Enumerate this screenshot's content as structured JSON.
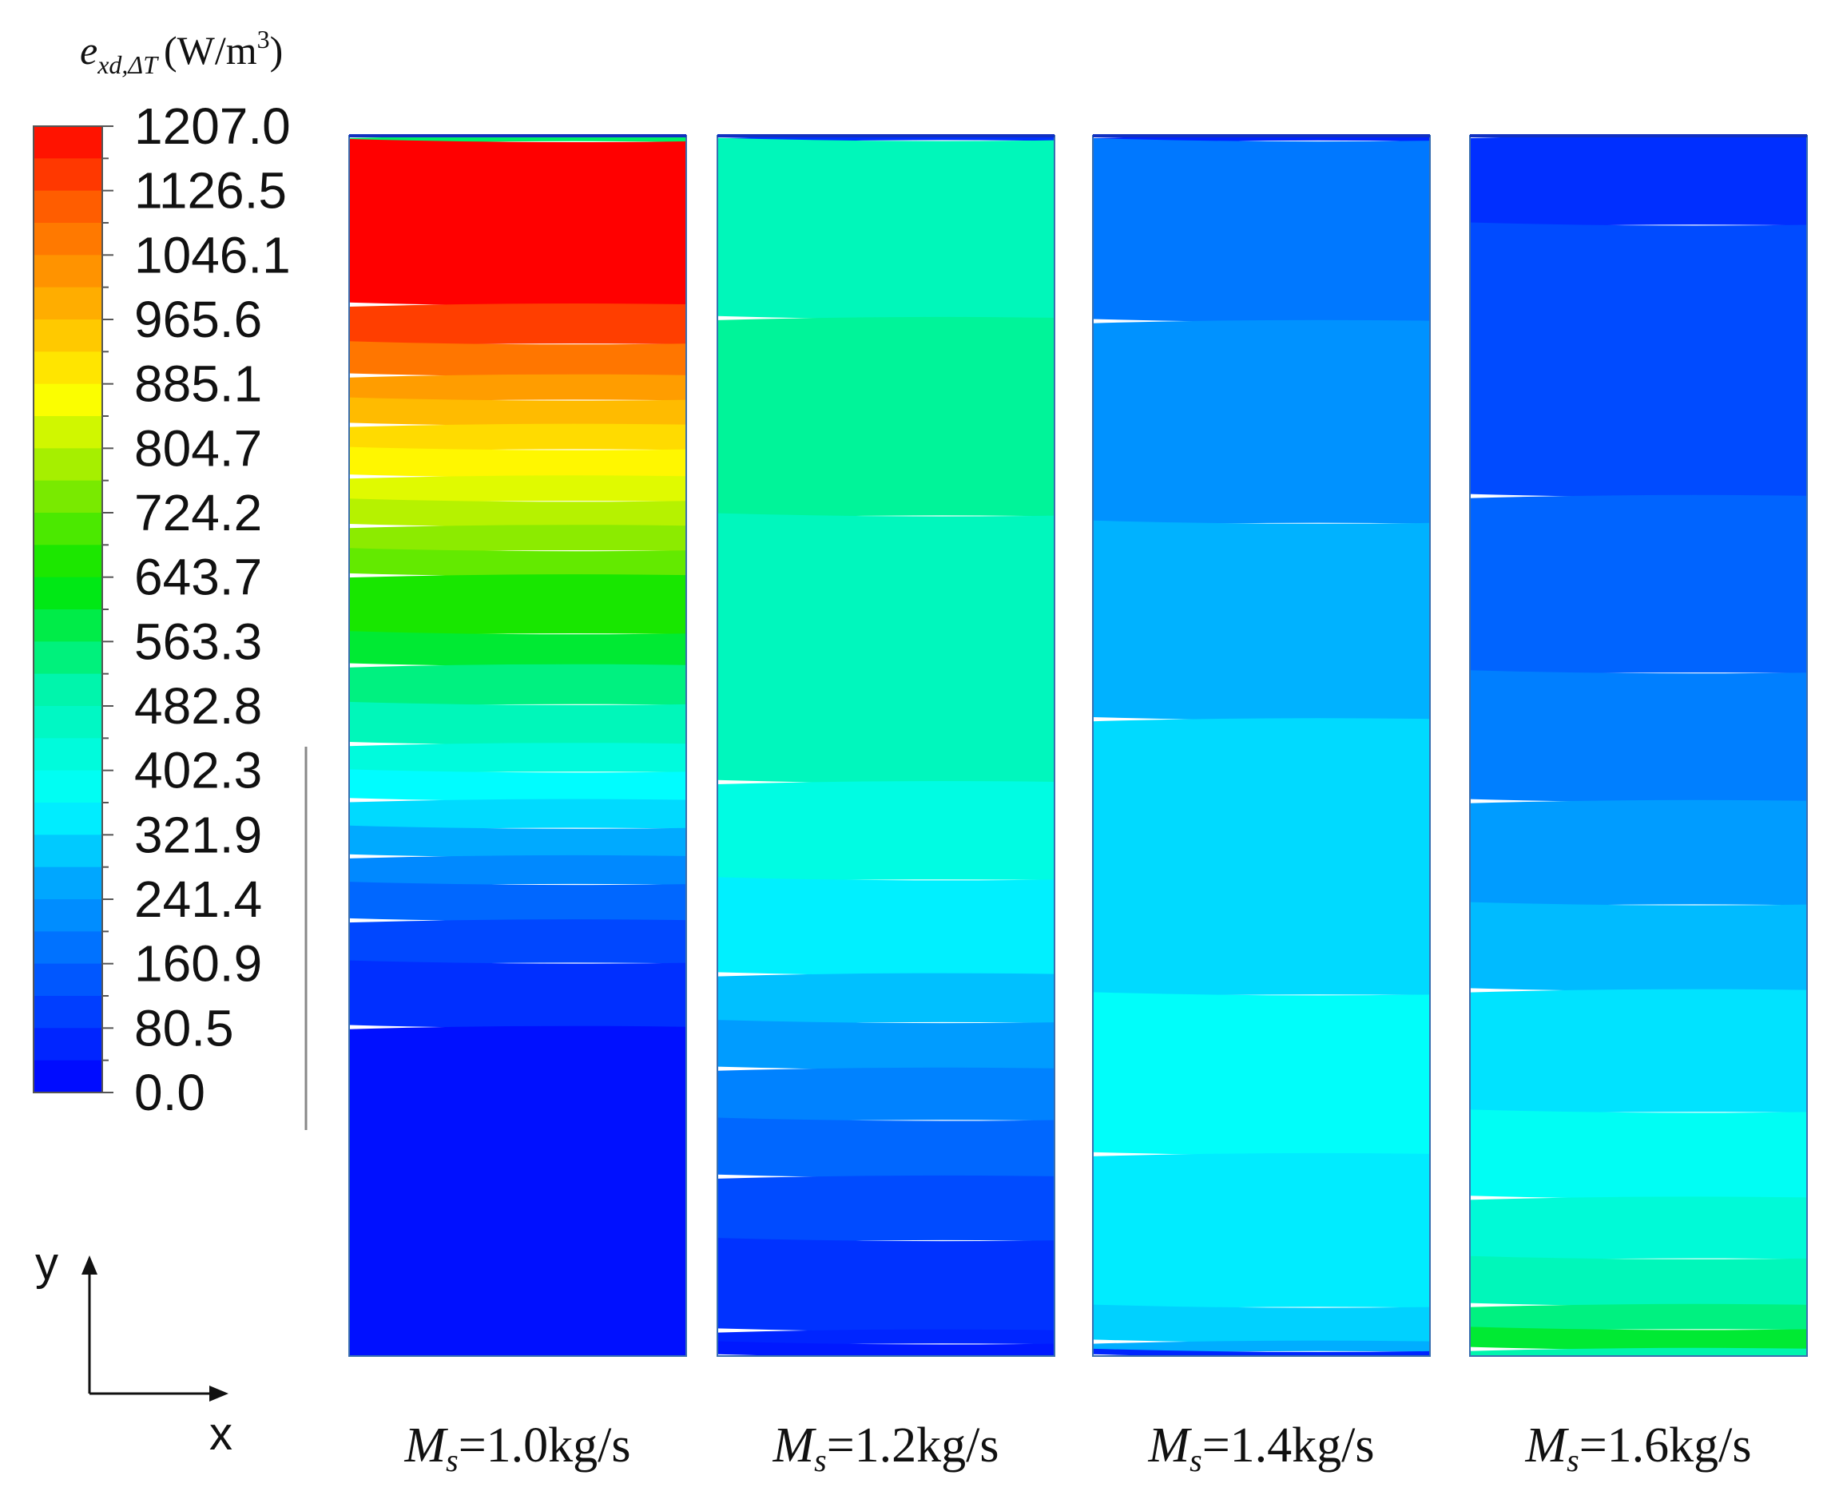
{
  "chart_data": {
    "type": "heatmap",
    "colorbar": {
      "title_symbol": "e",
      "title_subscript": "xd,ΔT",
      "title_unit_open": "(W/m",
      "title_unit_power": "3",
      "title_unit_close": ")",
      "min": 0.0,
      "max": 1207.0,
      "tick_labels": [
        "1207.0",
        "1126.5",
        "1046.1",
        "965.6",
        "885.1",
        "804.7",
        "724.2",
        "643.7",
        "563.3",
        "482.8",
        "402.3",
        "321.9",
        "241.4",
        "160.9",
        "80.5",
        "0.0"
      ]
    },
    "axes": {
      "y_label": "y",
      "x_label": "x"
    },
    "panels": [
      {
        "label_symbol": "M",
        "label_subscript": "s",
        "label_rest": "=1.0kg/s",
        "bands": [
          {
            "frac": 0.005,
            "value": 560
          },
          {
            "frac": 0.145,
            "value": 1207
          },
          {
            "frac": 0.035,
            "value": 1140
          },
          {
            "frac": 0.028,
            "value": 1070
          },
          {
            "frac": 0.022,
            "value": 1010
          },
          {
            "frac": 0.022,
            "value": 965
          },
          {
            "frac": 0.022,
            "value": 920
          },
          {
            "frac": 0.024,
            "value": 880
          },
          {
            "frac": 0.022,
            "value": 840
          },
          {
            "frac": 0.022,
            "value": 800
          },
          {
            "frac": 0.022,
            "value": 760
          },
          {
            "frac": 0.022,
            "value": 725
          },
          {
            "frac": 0.052,
            "value": 660
          },
          {
            "frac": 0.028,
            "value": 600
          },
          {
            "frac": 0.035,
            "value": 540
          },
          {
            "frac": 0.035,
            "value": 480
          },
          {
            "frac": 0.025,
            "value": 420
          },
          {
            "frac": 0.025,
            "value": 360
          },
          {
            "frac": 0.025,
            "value": 320
          },
          {
            "frac": 0.025,
            "value": 265
          },
          {
            "frac": 0.025,
            "value": 215
          },
          {
            "frac": 0.032,
            "value": 165
          },
          {
            "frac": 0.038,
            "value": 115
          },
          {
            "frac": 0.057,
            "value": 75
          },
          {
            "frac": 0.293,
            "value": 25
          }
        ]
      },
      {
        "label_symbol": "M",
        "label_subscript": "s",
        "label_rest": "=1.2kg/s",
        "bands": [
          {
            "frac": 0.004,
            "value": 80
          },
          {
            "frac": 0.158,
            "value": 480
          },
          {
            "frac": 0.176,
            "value": 520
          },
          {
            "frac": 0.237,
            "value": 475
          },
          {
            "frac": 0.087,
            "value": 410
          },
          {
            "frac": 0.084,
            "value": 345
          },
          {
            "frac": 0.043,
            "value": 290
          },
          {
            "frac": 0.041,
            "value": 245
          },
          {
            "frac": 0.046,
            "value": 205
          },
          {
            "frac": 0.05,
            "value": 165
          },
          {
            "frac": 0.057,
            "value": 120
          },
          {
            "frac": 0.08,
            "value": 80
          },
          {
            "frac": 0.012,
            "value": 60
          },
          {
            "frac": 0.011,
            "value": 40
          }
        ]
      },
      {
        "label_symbol": "M",
        "label_subscript": "s",
        "label_rest": "=1.4kg/s",
        "bands": [
          {
            "frac": 0.004,
            "value": 60
          },
          {
            "frac": 0.147,
            "value": 190
          },
          {
            "frac": 0.165,
            "value": 230
          },
          {
            "frac": 0.16,
            "value": 275
          },
          {
            "frac": 0.225,
            "value": 320
          },
          {
            "frac": 0.13,
            "value": 370
          },
          {
            "frac": 0.125,
            "value": 340
          },
          {
            "frac": 0.028,
            "value": 310
          },
          {
            "frac": 0.008,
            "value": 270
          },
          {
            "frac": 0.004,
            "value": 60
          }
        ]
      },
      {
        "label_symbol": "M",
        "label_subscript": "s",
        "label_rest": "=1.6kg/s",
        "bands": [
          {
            "frac": 0.073,
            "value": 75
          },
          {
            "frac": 0.222,
            "value": 120
          },
          {
            "frac": 0.145,
            "value": 160
          },
          {
            "frac": 0.105,
            "value": 200
          },
          {
            "frac": 0.085,
            "value": 245
          },
          {
            "frac": 0.07,
            "value": 285
          },
          {
            "frac": 0.1,
            "value": 330
          },
          {
            "frac": 0.07,
            "value": 380
          },
          {
            "frac": 0.05,
            "value": 430
          },
          {
            "frac": 0.038,
            "value": 480
          },
          {
            "frac": 0.02,
            "value": 540
          },
          {
            "frac": 0.016,
            "value": 600
          },
          {
            "frac": 0.006,
            "value": 500
          }
        ]
      }
    ]
  }
}
